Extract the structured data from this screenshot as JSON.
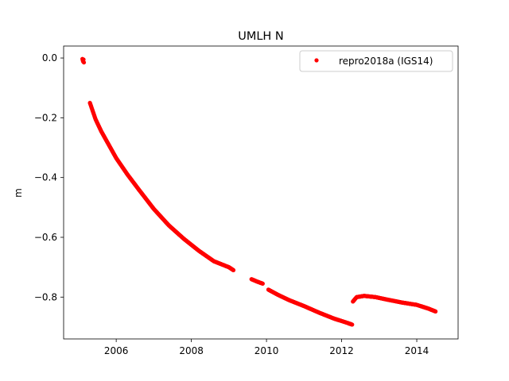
{
  "chart_data": {
    "type": "scatter",
    "title": "UMLH N",
    "xlabel": "",
    "ylabel": "m",
    "xlim": [
      2004.6,
      2015.1
    ],
    "ylim": [
      -0.94,
      0.04
    ],
    "xticks": [
      2006,
      2008,
      2010,
      2012,
      2014
    ],
    "yticks": [
      0.0,
      -0.2,
      -0.4,
      -0.6,
      -0.8
    ],
    "ytick_labels": [
      "0.0",
      "−0.2",
      "−0.4",
      "−0.6",
      "−0.8"
    ],
    "grid": false,
    "legend": {
      "position": "top-right"
    },
    "series": [
      {
        "name": "repro2018a (IGS14)",
        "color": "#ff0000",
        "marker": "circle",
        "segments": [
          {
            "x": [
              2005.1,
              2005.11,
              2005.12,
              2005.13,
              2005.14
            ],
            "y": [
              -0.003,
              -0.008,
              -0.012,
              -0.005,
              -0.015
            ]
          },
          {
            "x": [
              2005.3,
              2005.45,
              2005.6,
              2005.8,
              2006.0,
              2006.3,
              2006.6,
              2007.0,
              2007.4,
              2007.8,
              2008.2,
              2008.6,
              2009.0,
              2009.12
            ],
            "y": [
              -0.15,
              -0.205,
              -0.245,
              -0.29,
              -0.335,
              -0.39,
              -0.44,
              -0.505,
              -0.56,
              -0.605,
              -0.645,
              -0.68,
              -0.7,
              -0.71
            ]
          },
          {
            "x": [
              2009.6,
              2009.75,
              2009.9
            ],
            "y": [
              -0.74,
              -0.748,
              -0.755
            ]
          },
          {
            "x": [
              2010.05,
              2010.3,
              2010.6,
              2011.0,
              2011.4,
              2011.8,
              2012.1,
              2012.28
            ],
            "y": [
              -0.775,
              -0.792,
              -0.81,
              -0.83,
              -0.852,
              -0.872,
              -0.884,
              -0.892
            ]
          },
          {
            "x": [
              2012.3,
              2012.4,
              2012.6,
              2012.9,
              2013.2,
              2013.6,
              2014.0,
              2014.3,
              2014.5
            ],
            "y": [
              -0.815,
              -0.8,
              -0.796,
              -0.8,
              -0.808,
              -0.818,
              -0.826,
              -0.838,
              -0.848
            ]
          }
        ]
      }
    ]
  }
}
